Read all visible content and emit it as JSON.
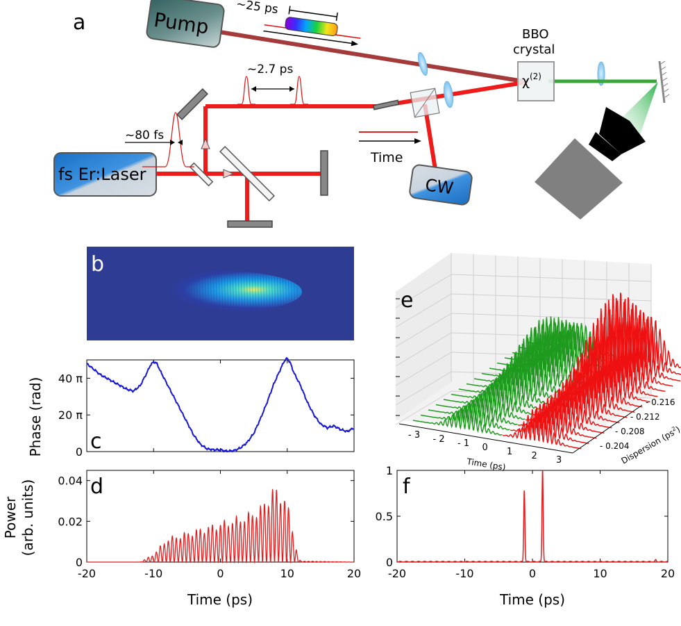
{
  "colors": {
    "pump_beam": "#a43a3a",
    "laser_beam": "#ee1b1b",
    "green_beam": "#3aa63a",
    "phase_line": "#1515d8",
    "power_line": "#e11d1d",
    "box_dark": "#3e6b6a",
    "box_blue": "#1a73c8",
    "grey": "#858585"
  },
  "setup": {
    "panel": "a",
    "pump_label": "Pump",
    "laser_label": "fs Er:Laser",
    "cw_label": "CW",
    "crystal_title_1": "BBO",
    "crystal_title_2": "crystal",
    "chi_base": "χ",
    "chi_sup": "(2)",
    "pump_duration": "~25 ps",
    "pulse_separation": "~2.7 ps",
    "pulse_width": "~80 fs",
    "time_label": "Time"
  },
  "panel_b": {
    "letter": "b"
  },
  "panel_e": {
    "letter": "e",
    "time_ticks": [
      "- 3",
      "- 2",
      "- 1",
      "0",
      "1",
      "2",
      "3"
    ],
    "time_label": "Time (ps)",
    "disp_ticks": [
      "- 0.216",
      "- 0.212",
      "- 0.208",
      "- 0.204"
    ],
    "disp_label_base": "Dispersion (ps",
    "disp_label_sup": "2",
    "disp_label_end": ")"
  },
  "chart_data": [
    {
      "panel": "c",
      "type": "line",
      "ylabel": "Phase (rad)",
      "xlim": [
        -20,
        20
      ],
      "ylim": [
        0,
        50
      ],
      "y_ticks": [
        {
          "v": 0,
          "label": "0"
        },
        {
          "v": 20,
          "label": "20 π"
        },
        {
          "v": 40,
          "label": "40 π"
        }
      ],
      "series": [
        {
          "name": "phase",
          "x": [
            -20,
            -19,
            -18,
            -17,
            -16,
            -15,
            -14,
            -13,
            -12,
            -11,
            -10.5,
            -10,
            -9.5,
            -9,
            -8,
            -7,
            -6,
            -5,
            -4,
            -3,
            -2,
            -1,
            0,
            0.5,
            1,
            2,
            3,
            4,
            5,
            6,
            7,
            8,
            9,
            9.5,
            10,
            10.5,
            11,
            12,
            13,
            14,
            15,
            16,
            17,
            18,
            19,
            20
          ],
          "y": [
            48,
            45,
            42,
            40,
            38,
            36,
            34,
            33,
            36,
            43,
            47,
            49,
            48,
            44,
            37,
            30,
            23,
            16,
            9,
            4,
            1.5,
            1,
            1,
            0.5,
            0.3,
            0.5,
            2,
            5,
            10,
            18,
            27,
            37,
            45,
            49,
            51,
            48,
            43,
            36,
            27,
            20,
            15,
            13,
            14,
            12,
            11,
            13
          ]
        }
      ]
    },
    {
      "panel": "d",
      "type": "line",
      "ylabel": "Power",
      "ylabel2": "(arb. units)",
      "xlabel": "Time (ps)",
      "xlim": [
        -20,
        20
      ],
      "ylim": [
        0,
        0.045
      ],
      "x_ticks": [
        -20,
        -10,
        0,
        10,
        20
      ],
      "x_tick_labels": [
        "-20",
        "-10",
        "0",
        "10",
        "20"
      ],
      "y_ticks": [
        0,
        0.02,
        0.04
      ],
      "y_tick_labels": [
        "0",
        "0.02",
        "0.04"
      ],
      "envelope": {
        "x": [
          -20,
          -12,
          -11,
          -10,
          -9,
          -8,
          -6,
          -4,
          -2,
          0,
          2,
          4,
          6,
          7,
          8,
          9,
          10,
          11,
          11.5,
          12,
          20
        ],
        "y": [
          0,
          0,
          0.002,
          0.004,
          0.008,
          0.012,
          0.014,
          0.016,
          0.018,
          0.02,
          0.022,
          0.024,
          0.028,
          0.033,
          0.038,
          0.036,
          0.03,
          0.015,
          0.004,
          0.0005,
          0
        ]
      }
    },
    {
      "panel": "f",
      "type": "line",
      "xlabel": "Time (ps)",
      "xlim": [
        -20,
        20
      ],
      "ylim": [
        0,
        1
      ],
      "x_ticks": [
        -20,
        -10,
        0,
        10,
        20
      ],
      "x_tick_labels": [
        "-20",
        "-10",
        "0",
        "10",
        "20"
      ],
      "y_ticks": [
        0,
        0.5,
        1
      ],
      "y_tick_labels": [
        "0",
        "0.5",
        "1"
      ],
      "peaks": [
        {
          "x": -1.2,
          "y": 0.78
        },
        {
          "x": 1.5,
          "y": 1.0
        },
        {
          "x": 18.2,
          "y": 0.02
        }
      ]
    }
  ]
}
